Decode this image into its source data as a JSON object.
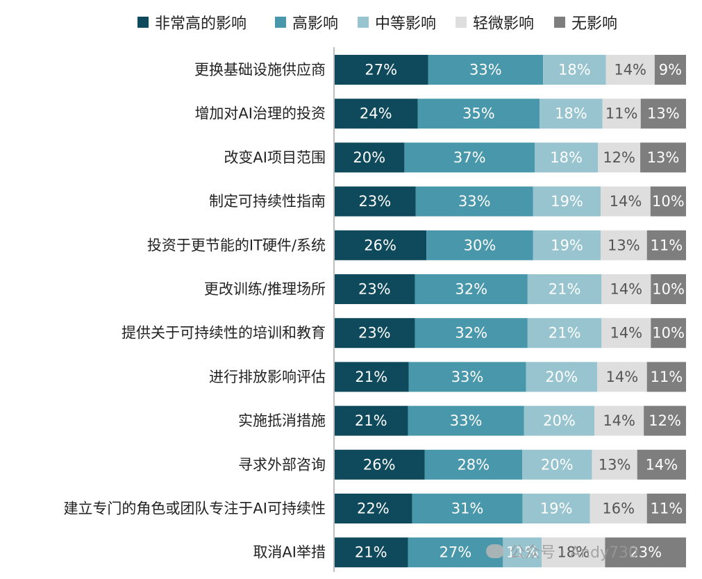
{
  "colors": [
    "#0f4a5c",
    "#4997aa",
    "#97c4cf",
    "#dedede",
    "#7e7e7e"
  ],
  "text_colors": [
    "#ffffff",
    "#ffffff",
    "#ffffff",
    "#555555",
    "#ffffff"
  ],
  "legend": [
    {
      "label": "非常高的影响"
    },
    {
      "label": "高影响"
    },
    {
      "label": "中等影响"
    },
    {
      "label": "轻微影响"
    },
    {
      "label": "无影响"
    }
  ],
  "watermark": {
    "text": "公众号 · Andy730"
  },
  "chart_data": {
    "type": "bar",
    "orientation": "horizontal",
    "stacked": true,
    "title": "",
    "xlabel": "",
    "ylabel": "",
    "categories": [
      "更换基础设施供应商",
      "增加对AI治理的投资",
      "改变AI项目范围",
      "制定可持续性指南",
      "投资于更节能的IT硬件/系统",
      "更改训练/推理场所",
      "提供关于可持续性的培训和教育",
      "进行排放影响评估",
      "实施抵消措施",
      "寻求外部咨询",
      "建立专门的角色或团队专注于AI可持续性",
      "取消AI举措"
    ],
    "series": [
      {
        "name": "非常高的影响",
        "values": [
          27,
          24,
          20,
          23,
          26,
          23,
          23,
          21,
          21,
          26,
          22,
          21
        ]
      },
      {
        "name": "高影响",
        "values": [
          33,
          35,
          37,
          33,
          30,
          32,
          32,
          33,
          33,
          28,
          31,
          27
        ]
      },
      {
        "name": "中等影响",
        "values": [
          18,
          18,
          18,
          19,
          19,
          21,
          21,
          20,
          20,
          20,
          19,
          11
        ]
      },
      {
        "name": "轻微影响",
        "values": [
          14,
          11,
          12,
          14,
          13,
          14,
          14,
          14,
          14,
          13,
          16,
          18
        ]
      },
      {
        "name": "无影响",
        "values": [
          9,
          13,
          13,
          10,
          11,
          10,
          10,
          11,
          12,
          14,
          11,
          23
        ]
      }
    ],
    "value_suffix": "%",
    "legend_position": "top",
    "grid": false
  }
}
